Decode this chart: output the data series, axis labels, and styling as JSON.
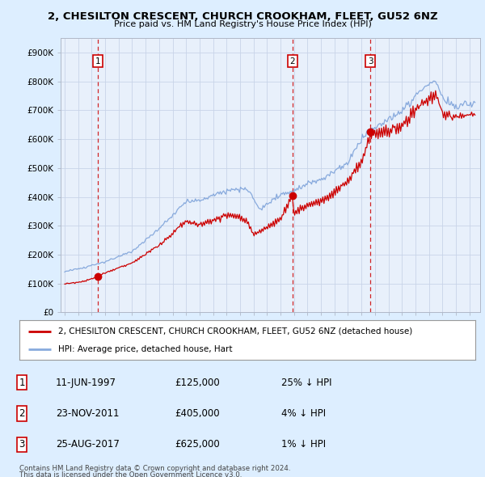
{
  "title": "2, CHESILTON CRESCENT, CHURCH CROOKHAM, FLEET, GU52 6NZ",
  "subtitle": "Price paid vs. HM Land Registry's House Price Index (HPI)",
  "ylim": [
    0,
    950000
  ],
  "yticks": [
    0,
    100000,
    200000,
    300000,
    400000,
    500000,
    600000,
    700000,
    800000,
    900000
  ],
  "ytick_labels": [
    "£0",
    "£100K",
    "£200K",
    "£300K",
    "£400K",
    "£500K",
    "£600K",
    "£700K",
    "£800K",
    "£900K"
  ],
  "sale_dates_num": [
    1997.44,
    2011.9,
    2017.65
  ],
  "sale_prices": [
    125000,
    405000,
    625000
  ],
  "sale_labels": [
    "1",
    "2",
    "3"
  ],
  "sale_table": [
    [
      "1",
      "11-JUN-1997",
      "£125,000",
      "25% ↓ HPI"
    ],
    [
      "2",
      "23-NOV-2011",
      "£405,000",
      "4% ↓ HPI"
    ],
    [
      "3",
      "25-AUG-2017",
      "£625,000",
      "1% ↓ HPI"
    ]
  ],
  "legend_line1": "2, CHESILTON CRESCENT, CHURCH CROOKHAM, FLEET, GU52 6NZ (detached house)",
  "legend_line2": "HPI: Average price, detached house, Hart",
  "footer1": "Contains HM Land Registry data © Crown copyright and database right 2024.",
  "footer2": "This data is licensed under the Open Government Licence v3.0.",
  "sale_color": "#cc0000",
  "hpi_color": "#88aadd",
  "background_color": "#ddeeff",
  "plot_bg_color": "#e8f0fb",
  "grid_color": "#c8d4e8"
}
